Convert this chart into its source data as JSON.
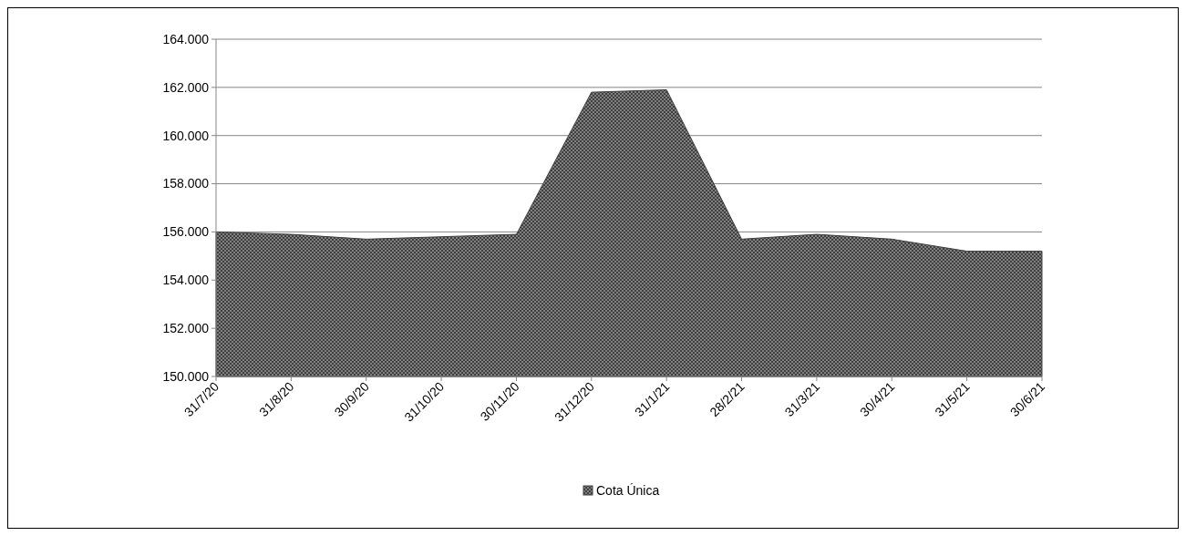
{
  "chart_data": {
    "type": "area",
    "categories": [
      "31/7/20",
      "31/8/20",
      "30/9/20",
      "31/10/20",
      "30/11/20",
      "31/12/20",
      "31/1/21",
      "28/2/21",
      "31/3/21",
      "30/4/21",
      "31/5/21",
      "30/6/21"
    ],
    "series": [
      {
        "name": "Cota Única",
        "color": "#404040",
        "values": [
          156000,
          155900,
          155700,
          155800,
          155900,
          161800,
          161900,
          155700,
          155900,
          155700,
          155200,
          155200
        ]
      }
    ],
    "ylim": [
      150000,
      164000
    ],
    "yticks": [
      {
        "value": 150000,
        "label": "150.000"
      },
      {
        "value": 152000,
        "label": "152.000"
      },
      {
        "value": 154000,
        "label": "154.000"
      },
      {
        "value": 156000,
        "label": "156.000"
      },
      {
        "value": 158000,
        "label": "158.000"
      },
      {
        "value": 160000,
        "label": "160.000"
      },
      {
        "value": 162000,
        "label": "162.000"
      },
      {
        "value": 164000,
        "label": "164.000"
      }
    ],
    "grid": "y",
    "legend": "bottom"
  }
}
